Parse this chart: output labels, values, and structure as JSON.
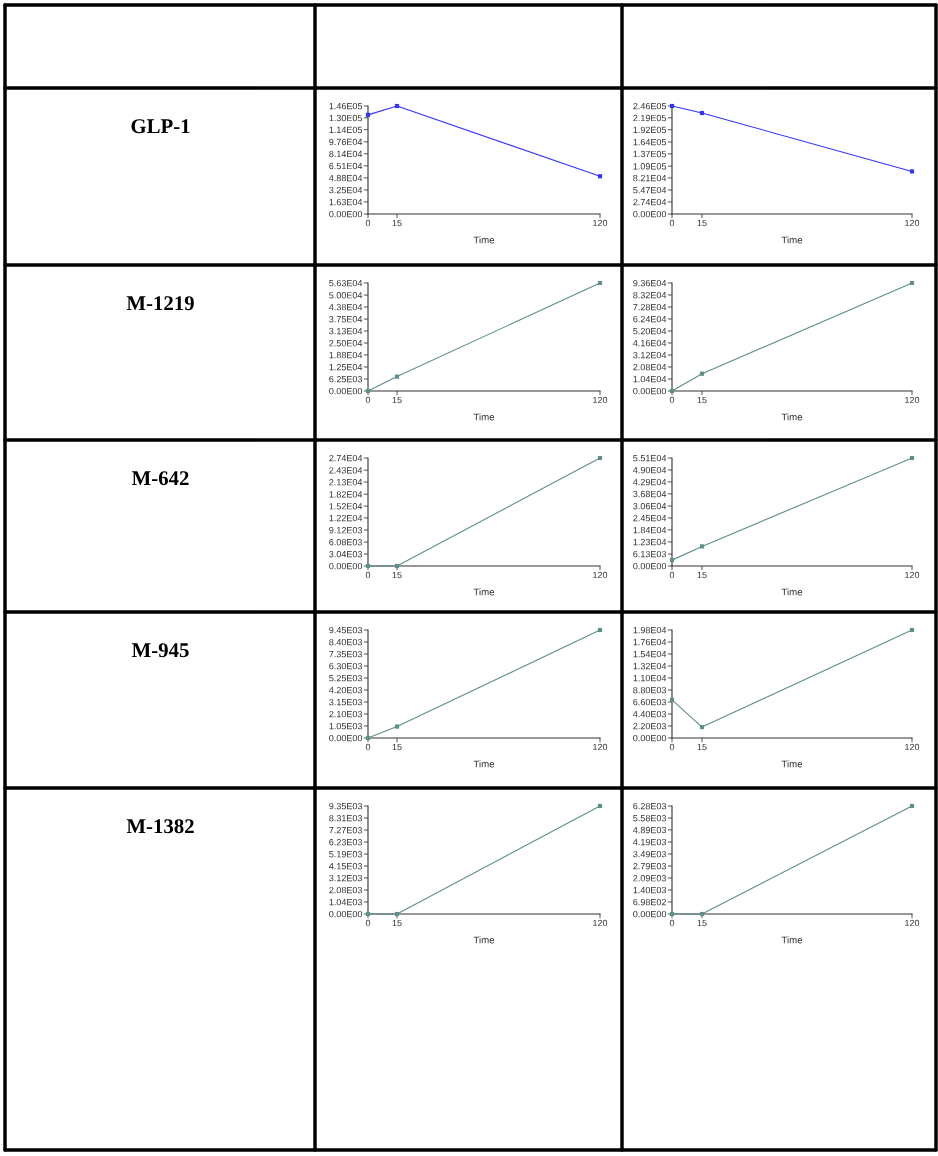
{
  "chart_data": [
    {
      "type": "other",
      "annotations": [
        "GLP-1",
        "M-1219",
        "M-642",
        "M-945",
        "M-1382"
      ]
    },
    {
      "type": "line",
      "xlabel": "Time",
      "x": [
        0,
        15,
        120
      ],
      "xlim": [
        0,
        120
      ],
      "xticks": [
        0,
        15,
        120
      ],
      "ylim": [
        0,
        146000
      ],
      "yticks": [
        {
          "value": 0,
          "label": "0.00E00"
        },
        {
          "value": 16300,
          "label": "1.63E04"
        },
        {
          "value": 32500,
          "label": "3.25E04"
        },
        {
          "value": 48800,
          "label": "4.88E04"
        },
        {
          "value": 65100,
          "label": "6.51E04"
        },
        {
          "value": 81400,
          "label": "8.14E04"
        },
        {
          "value": 97600,
          "label": "9.76E04"
        },
        {
          "value": 114000,
          "label": "1.14E05"
        },
        {
          "value": 130000,
          "label": "1.30E05"
        },
        {
          "value": 146000,
          "label": "1.46E05"
        }
      ],
      "marker": "square",
      "grid": false,
      "series": [
        {
          "color": "#3333ff",
          "values": [
            134000,
            146000,
            51000
          ]
        }
      ]
    },
    {
      "type": "line",
      "xlabel": "Time",
      "x": [
        0,
        15,
        120
      ],
      "xlim": [
        0,
        120
      ],
      "xticks": [
        0,
        15,
        120
      ],
      "ylim": [
        0,
        246000
      ],
      "yticks": [
        {
          "value": 0,
          "label": "0.00E00"
        },
        {
          "value": 27400,
          "label": "2.74E04"
        },
        {
          "value": 54700,
          "label": "5.47E04"
        },
        {
          "value": 82100,
          "label": "8.21E04"
        },
        {
          "value": 109000,
          "label": "1.09E05"
        },
        {
          "value": 137000,
          "label": "1.37E05"
        },
        {
          "value": 164000,
          "label": "1.64E05"
        },
        {
          "value": 192000,
          "label": "1.92E05"
        },
        {
          "value": 219000,
          "label": "2.19E05"
        },
        {
          "value": 246000,
          "label": "2.46E05"
        }
      ],
      "marker": "square",
      "grid": false,
      "series": [
        {
          "color": "#3333ff",
          "values": [
            246000,
            230000,
            97000
          ]
        }
      ]
    },
    {
      "type": "line",
      "xlabel": "Time",
      "x": [
        0,
        15,
        120
      ],
      "xlim": [
        0,
        120
      ],
      "xticks": [
        0,
        15,
        120
      ],
      "ylim": [
        0,
        56300
      ],
      "yticks": [
        {
          "value": 0,
          "label": "0.00E00"
        },
        {
          "value": 6250,
          "label": "6.25E03"
        },
        {
          "value": 12500,
          "label": "1.25E04"
        },
        {
          "value": 18800,
          "label": "1.88E04"
        },
        {
          "value": 25000,
          "label": "2.50E04"
        },
        {
          "value": 31300,
          "label": "3.13E04"
        },
        {
          "value": 37500,
          "label": "3.75E04"
        },
        {
          "value": 43800,
          "label": "4.38E04"
        },
        {
          "value": 50000,
          "label": "5.00E04"
        },
        {
          "value": 56300,
          "label": "5.63E04"
        }
      ],
      "marker": "square",
      "grid": false,
      "series": [
        {
          "color": "#5f8f8a",
          "values": [
            0,
            7500,
            56300
          ]
        }
      ]
    },
    {
      "type": "line",
      "xlabel": "Time",
      "x": [
        0,
        15,
        120
      ],
      "xlim": [
        0,
        120
      ],
      "xticks": [
        0,
        15,
        120
      ],
      "ylim": [
        0,
        93600
      ],
      "yticks": [
        {
          "value": 0,
          "label": "0.00E00"
        },
        {
          "value": 10400,
          "label": "1.04E04"
        },
        {
          "value": 20800,
          "label": "2.08E04"
        },
        {
          "value": 31200,
          "label": "3.12E04"
        },
        {
          "value": 41600,
          "label": "4.16E04"
        },
        {
          "value": 52000,
          "label": "5.20E04"
        },
        {
          "value": 62400,
          "label": "6.24E04"
        },
        {
          "value": 72800,
          "label": "7.28E04"
        },
        {
          "value": 83200,
          "label": "8.32E04"
        },
        {
          "value": 93600,
          "label": "9.36E04"
        }
      ],
      "marker": "square",
      "grid": false,
      "series": [
        {
          "color": "#5f8f8a",
          "values": [
            0,
            15000,
            93600
          ]
        }
      ]
    },
    {
      "type": "line",
      "xlabel": "Time",
      "x": [
        0,
        15,
        120
      ],
      "xlim": [
        0,
        120
      ],
      "xticks": [
        0,
        15,
        120
      ],
      "ylim": [
        0,
        27400
      ],
      "yticks": [
        {
          "value": 0,
          "label": "0.00E00"
        },
        {
          "value": 3040,
          "label": "3.04E03"
        },
        {
          "value": 6080,
          "label": "6.08E03"
        },
        {
          "value": 9120,
          "label": "9.12E03"
        },
        {
          "value": 12200,
          "label": "1.22E04"
        },
        {
          "value": 15200,
          "label": "1.52E04"
        },
        {
          "value": 18200,
          "label": "1.82E04"
        },
        {
          "value": 21300,
          "label": "2.13E04"
        },
        {
          "value": 24300,
          "label": "2.43E04"
        },
        {
          "value": 27400,
          "label": "2.74E04"
        }
      ],
      "marker": "square",
      "grid": false,
      "series": [
        {
          "color": "#5f8f8a",
          "values": [
            0,
            0,
            27400
          ]
        }
      ]
    },
    {
      "type": "line",
      "xlabel": "Time",
      "x": [
        0,
        15,
        120
      ],
      "xlim": [
        0,
        120
      ],
      "xticks": [
        0,
        15,
        120
      ],
      "ylim": [
        0,
        55100
      ],
      "yticks": [
        {
          "value": 0,
          "label": "0.00E00"
        },
        {
          "value": 6130,
          "label": "6.13E03"
        },
        {
          "value": 12300,
          "label": "1.23E04"
        },
        {
          "value": 18400,
          "label": "1.84E04"
        },
        {
          "value": 24500,
          "label": "2.45E04"
        },
        {
          "value": 30600,
          "label": "3.06E04"
        },
        {
          "value": 36800,
          "label": "3.68E04"
        },
        {
          "value": 42900,
          "label": "4.29E04"
        },
        {
          "value": 49000,
          "label": "4.90E04"
        },
        {
          "value": 55100,
          "label": "5.51E04"
        }
      ],
      "marker": "square",
      "grid": false,
      "series": [
        {
          "color": "#5f8f8a",
          "values": [
            3000,
            10000,
            55100
          ]
        }
      ]
    },
    {
      "type": "line",
      "xlabel": "Time",
      "x": [
        0,
        15,
        120
      ],
      "xlim": [
        0,
        120
      ],
      "xticks": [
        0,
        15,
        120
      ],
      "ylim": [
        0,
        9450
      ],
      "yticks": [
        {
          "value": 0,
          "label": "0.00E00"
        },
        {
          "value": 1050,
          "label": "1.05E03"
        },
        {
          "value": 2100,
          "label": "2.10E03"
        },
        {
          "value": 3150,
          "label": "3.15E03"
        },
        {
          "value": 4200,
          "label": "4.20E03"
        },
        {
          "value": 5250,
          "label": "5.25E03"
        },
        {
          "value": 6300,
          "label": "6.30E03"
        },
        {
          "value": 7350,
          "label": "7.35E03"
        },
        {
          "value": 8400,
          "label": "8.40E03"
        },
        {
          "value": 9450,
          "label": "9.45E03"
        }
      ],
      "marker": "square",
      "grid": false,
      "series": [
        {
          "color": "#5f8f8a",
          "values": [
            0,
            1000,
            9450
          ]
        }
      ]
    },
    {
      "type": "line",
      "xlabel": "Time",
      "x": [
        0,
        15,
        120
      ],
      "xlim": [
        0,
        120
      ],
      "xticks": [
        0,
        15,
        120
      ],
      "ylim": [
        0,
        19800
      ],
      "yticks": [
        {
          "value": 0,
          "label": "0.00E00"
        },
        {
          "value": 2200,
          "label": "2.20E03"
        },
        {
          "value": 4400,
          "label": "4.40E03"
        },
        {
          "value": 6600,
          "label": "6.60E03"
        },
        {
          "value": 8800,
          "label": "8.80E03"
        },
        {
          "value": 11000,
          "label": "1.10E04"
        },
        {
          "value": 13200,
          "label": "1.32E04"
        },
        {
          "value": 15400,
          "label": "1.54E04"
        },
        {
          "value": 17600,
          "label": "1.76E04"
        },
        {
          "value": 19800,
          "label": "1.98E04"
        }
      ],
      "marker": "square",
      "grid": false,
      "series": [
        {
          "color": "#5f8f8a",
          "values": [
            7000,
            2000,
            19800
          ]
        }
      ]
    },
    {
      "type": "line",
      "xlabel": "Time",
      "x": [
        0,
        15,
        120
      ],
      "xlim": [
        0,
        120
      ],
      "xticks": [
        0,
        15,
        120
      ],
      "ylim": [
        0,
        9350
      ],
      "yticks": [
        {
          "value": 0,
          "label": "0.00E00"
        },
        {
          "value": 1040,
          "label": "1.04E03"
        },
        {
          "value": 2080,
          "label": "2.08E03"
        },
        {
          "value": 3120,
          "label": "3.12E03"
        },
        {
          "value": 4150,
          "label": "4.15E03"
        },
        {
          "value": 5190,
          "label": "5.19E03"
        },
        {
          "value": 6230,
          "label": "6.23E03"
        },
        {
          "value": 7270,
          "label": "7.27E03"
        },
        {
          "value": 8310,
          "label": "8.31E03"
        },
        {
          "value": 9350,
          "label": "9.35E03"
        }
      ],
      "marker": "square",
      "grid": false,
      "series": [
        {
          "color": "#5f8f8a",
          "values": [
            0,
            0,
            9350
          ]
        }
      ]
    },
    {
      "type": "line",
      "xlabel": "Time",
      "x": [
        0,
        15,
        120
      ],
      "xlim": [
        0,
        120
      ],
      "xticks": [
        0,
        15,
        120
      ],
      "ylim": [
        0,
        6280
      ],
      "yticks": [
        {
          "value": 0,
          "label": "0.00E00"
        },
        {
          "value": 698,
          "label": "6.98E02"
        },
        {
          "value": 1400,
          "label": "1.40E03"
        },
        {
          "value": 2090,
          "label": "2.09E03"
        },
        {
          "value": 2790,
          "label": "2.79E03"
        },
        {
          "value": 3490,
          "label": "3.49E03"
        },
        {
          "value": 4190,
          "label": "4.19E03"
        },
        {
          "value": 4890,
          "label": "4.89E03"
        },
        {
          "value": 5580,
          "label": "5.58E03"
        },
        {
          "value": 6280,
          "label": "6.28E03"
        }
      ],
      "marker": "square",
      "grid": false,
      "series": [
        {
          "color": "#5f8f8a",
          "values": [
            0,
            0,
            6280
          ]
        }
      ]
    }
  ]
}
